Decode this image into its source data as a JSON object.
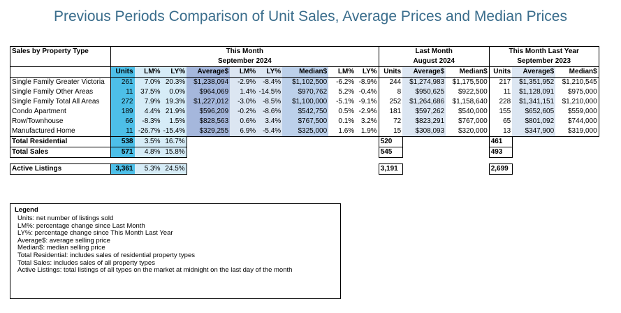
{
  "title": "Previous Periods Comparison of Unit Sales, Average Prices and Median Prices",
  "header": {
    "row_label": "Sales by Property Type",
    "this_month": "This Month",
    "this_month_date": "September 2024",
    "last_month": "Last Month",
    "last_month_date": "August 2024",
    "last_year": "This Month Last Year",
    "last_year_date": "September 2023",
    "cols": {
      "units": "Units",
      "lm": "LM%",
      "ly": "LY%",
      "avg": "Average$",
      "med": "Median$"
    }
  },
  "rows": [
    {
      "label": "Single Family Greater Victoria",
      "units": "261",
      "lm": "7.0%",
      "ly": "20.3%",
      "avg": "$1,238,094",
      "avg_lm": "-2.9%",
      "avg_ly": "-8.4%",
      "med": "$1,102,500",
      "med_lm": "-6.2%",
      "med_ly": "-8.9%",
      "lm_units": "244",
      "lm_avg": "$1,274,983",
      "lm_med": "$1,175,500",
      "ly_units": "217",
      "ly_avg": "$1,351,952",
      "ly_med": "$1,210,545"
    },
    {
      "label": "Single Family Other Areas",
      "units": "11",
      "lm": "37.5%",
      "ly": "0.0%",
      "avg": "$964,069",
      "avg_lm": "1.4%",
      "avg_ly": "-14.5%",
      "med": "$970,762",
      "med_lm": "5.2%",
      "med_ly": "-0.4%",
      "lm_units": "8",
      "lm_avg": "$950,625",
      "lm_med": "$922,500",
      "ly_units": "11",
      "ly_avg": "$1,128,091",
      "ly_med": "$975,000"
    },
    {
      "label": "Single Family Total All Areas",
      "units": "272",
      "lm": "7.9%",
      "ly": "19.3%",
      "avg": "$1,227,012",
      "avg_lm": "-3.0%",
      "avg_ly": "-8.5%",
      "med": "$1,100,000",
      "med_lm": "-5.1%",
      "med_ly": "-9.1%",
      "lm_units": "252",
      "lm_avg": "$1,264,686",
      "lm_med": "$1,158,640",
      "ly_units": "228",
      "ly_avg": "$1,341,151",
      "ly_med": "$1,210,000"
    },
    {
      "label": "Condo Apartment",
      "units": "189",
      "lm": "4.4%",
      "ly": "21.9%",
      "avg": "$596,209",
      "avg_lm": "-0.2%",
      "avg_ly": "-8.6%",
      "med": "$542,750",
      "med_lm": "0.5%",
      "med_ly": "-2.9%",
      "lm_units": "181",
      "lm_avg": "$597,262",
      "lm_med": "$540,000",
      "ly_units": "155",
      "ly_avg": "$652,605",
      "ly_med": "$559,000"
    },
    {
      "label": "Row/Townhouse",
      "units": "66",
      "lm": "-8.3%",
      "ly": "1.5%",
      "avg": "$828,563",
      "avg_lm": "0.6%",
      "avg_ly": "3.4%",
      "med": "$767,500",
      "med_lm": "0.1%",
      "med_ly": "3.2%",
      "lm_units": "72",
      "lm_avg": "$823,291",
      "lm_med": "$767,000",
      "ly_units": "65",
      "ly_avg": "$801,092",
      "ly_med": "$744,000"
    },
    {
      "label": "Manufactured Home",
      "units": "11",
      "lm": "-26.7%",
      "ly": "-15.4%",
      "avg": "$329,255",
      "avg_lm": "6.9%",
      "avg_ly": "-5.4%",
      "med": "$325,000",
      "med_lm": "1.6%",
      "med_ly": "1.9%",
      "lm_units": "15",
      "lm_avg": "$308,093",
      "lm_med": "$320,000",
      "ly_units": "13",
      "ly_avg": "$347,900",
      "ly_med": "$319,000"
    }
  ],
  "totals": [
    {
      "label": "Total Residential",
      "units": "538",
      "lm": "3.5%",
      "ly": "16.7%",
      "lm_units": "520",
      "ly_units": "461"
    },
    {
      "label": "Total Sales",
      "units": "571",
      "lm": "4.8%",
      "ly": "15.8%",
      "lm_units": "545",
      "ly_units": "493"
    }
  ],
  "active": {
    "label": "Active Listings",
    "units": "3,361",
    "lm": "5.3%",
    "ly": "24.5%",
    "lm_units": "3,191",
    "ly_units": "2,699"
  },
  "legend": {
    "title": "Legend",
    "items": [
      "Units: net number of listings sold",
      "LM%: percentage change since Last Month",
      "LY%: percentage change since This Month Last Year",
      "Average$: average selling price",
      "Median$: median selling price",
      "Total Residential: includes sales of residential property types",
      "Total Sales: includes sales of all property types",
      "Active Listings: total listings of all types on the market at midnight on the last day of the month"
    ]
  },
  "colors": {
    "title": "#3a6d8c",
    "units": "#4dbfe8",
    "pct": "#d6ecf7",
    "avg": "#a5b7dc",
    "avg_pct": "#dce6f2",
    "median": "#bcd0ea"
  }
}
